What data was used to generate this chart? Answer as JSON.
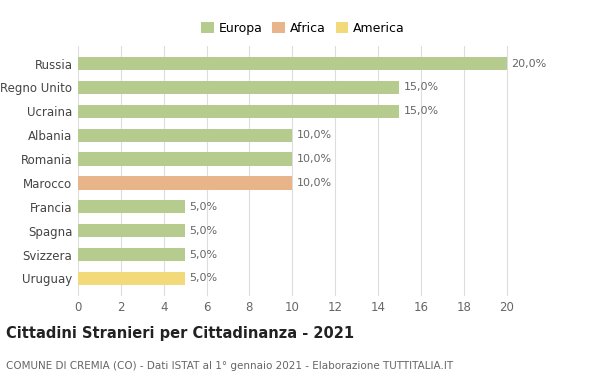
{
  "categories": [
    "Uruguay",
    "Svizzera",
    "Spagna",
    "Francia",
    "Marocco",
    "Romania",
    "Albania",
    "Ucraina",
    "Regno Unito",
    "Russia"
  ],
  "values": [
    5.0,
    5.0,
    5.0,
    5.0,
    10.0,
    10.0,
    10.0,
    15.0,
    15.0,
    20.0
  ],
  "bar_colors": [
    "#f2d97a",
    "#b5cc8e",
    "#b5cc8e",
    "#b5cc8e",
    "#e8b48a",
    "#b5cc8e",
    "#b5cc8e",
    "#b5cc8e",
    "#b5cc8e",
    "#b5cc8e"
  ],
  "labels": [
    "5,0%",
    "5,0%",
    "5,0%",
    "5,0%",
    "10,0%",
    "10,0%",
    "10,0%",
    "15,0%",
    "15,0%",
    "20,0%"
  ],
  "legend_labels": [
    "Europa",
    "Africa",
    "America"
  ],
  "legend_colors": [
    "#b5cc8e",
    "#e8b48a",
    "#f2d97a"
  ],
  "title_main": "Cittadini Stranieri per Cittadinanza - 2021",
  "title_sub": "COMUNE DI CREMIA (CO) - Dati ISTAT al 1° gennaio 2021 - Elaborazione TUTTITALIA.IT",
  "xlim": [
    0,
    21
  ],
  "xticks": [
    0,
    2,
    4,
    6,
    8,
    10,
    12,
    14,
    16,
    18,
    20
  ],
  "background_color": "#ffffff",
  "grid_color": "#dddddd",
  "bar_height": 0.55,
  "bar_label_fontsize": 8,
  "tick_label_fontsize": 8.5,
  "legend_fontsize": 9,
  "title_fontsize": 10.5,
  "subtitle_fontsize": 7.5
}
